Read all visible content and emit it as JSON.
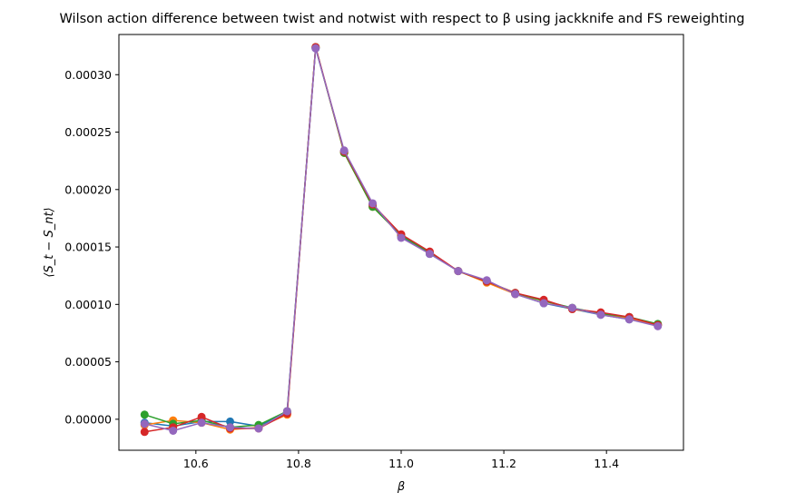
{
  "chart_data": {
    "type": "line",
    "title": "Wilson action difference between twist and notwist with respect to β using jackknife and FS reweighting",
    "xlabel": "β",
    "ylabel": "⟨S_t − S_nt⟩",
    "xlim": [
      10.45,
      11.55
    ],
    "ylim": [
      -2.7e-05,
      0.000335
    ],
    "x_ticks": [
      10.6,
      10.8,
      11.0,
      11.2,
      11.4
    ],
    "x_tick_labels": [
      "10.6",
      "10.8",
      "11.0",
      "11.2",
      "11.4"
    ],
    "y_ticks": [
      0.0,
      5e-05,
      0.0001,
      0.00015,
      0.0002,
      0.00025,
      0.0003
    ],
    "y_tick_labels": [
      "0.00000",
      "0.00005",
      "0.00010",
      "0.00015",
      "0.00020",
      "0.00025",
      "0.00030"
    ],
    "grid": false,
    "legend": "none",
    "x": [
      10.5,
      10.5556,
      10.6111,
      10.6667,
      10.7222,
      10.7778,
      10.8333,
      10.8889,
      10.9444,
      11.0,
      11.0556,
      11.1111,
      11.1667,
      11.2222,
      11.2778,
      11.3333,
      11.3889,
      11.4444,
      11.5
    ],
    "series": [
      {
        "color": "#1f77b4",
        "values": [
          -3e-06,
          -6e-06,
          -2e-06,
          -2e-06,
          -6e-06,
          6e-06,
          0.000323,
          0.000233,
          0.000187,
          0.000159,
          0.000144,
          0.000129,
          0.00012,
          0.000109,
          0.000101,
          9.6e-05,
          9.1e-05,
          8.7e-05,
          8.2e-05
        ]
      },
      {
        "color": "#ff7f0e",
        "values": [
          -5e-06,
          -1e-06,
          -3e-06,
          -9e-06,
          -7e-06,
          4e-06,
          0.000324,
          0.000232,
          0.000185,
          0.00016,
          0.000145,
          0.000129,
          0.000119,
          0.000109,
          0.000103,
          9.6e-05,
          9.2e-05,
          8.8e-05,
          8.2e-05
        ]
      },
      {
        "color": "#2ca02c",
        "values": [
          4e-06,
          -4e-06,
          -1e-06,
          -7e-06,
          -5e-06,
          7e-06,
          0.000324,
          0.000232,
          0.000185,
          0.00016,
          0.000145,
          0.000129,
          0.00012,
          0.00011,
          0.000103,
          9.7e-05,
          9.2e-05,
          8.9e-05,
          8.3e-05
        ]
      },
      {
        "color": "#d62728",
        "values": [
          -1.1e-05,
          -7e-06,
          2e-06,
          -8e-06,
          -8e-06,
          5e-06,
          0.000324,
          0.000233,
          0.000187,
          0.000161,
          0.000146,
          0.000129,
          0.00012,
          0.00011,
          0.000104,
          9.6e-05,
          9.3e-05,
          8.9e-05,
          8.2e-05
        ]
      },
      {
        "color": "#9467bd",
        "values": [
          -4e-06,
          -1e-05,
          -3e-06,
          -7e-06,
          -8e-06,
          7e-06,
          0.000323,
          0.000234,
          0.000188,
          0.000158,
          0.000144,
          0.000129,
          0.000121,
          0.000109,
          0.000101,
          9.7e-05,
          9.1e-05,
          8.7e-05,
          8.1e-05
        ]
      }
    ]
  }
}
